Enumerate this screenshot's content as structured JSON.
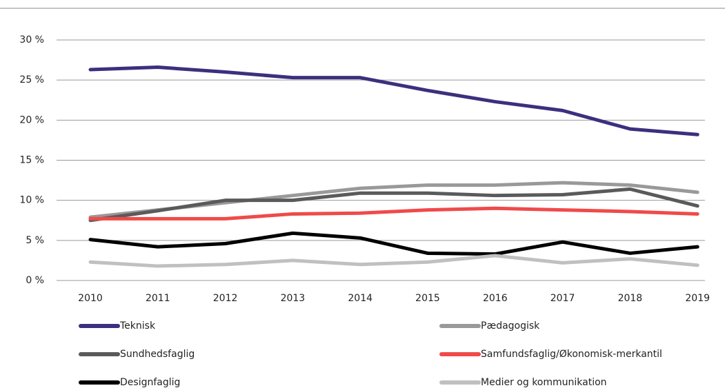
{
  "chart_data": {
    "type": "line",
    "categories": [
      "2010",
      "2011",
      "2012",
      "2013",
      "2014",
      "2015",
      "2016",
      "2017",
      "2018",
      "2019"
    ],
    "series": [
      {
        "name": "Teknisk",
        "color": "#3d2f7e",
        "values": [
          26.3,
          26.6,
          26.0,
          25.3,
          25.3,
          23.7,
          22.3,
          21.2,
          18.9,
          18.2
        ]
      },
      {
        "name": "Pædagogisk",
        "color": "#999999",
        "values": [
          7.9,
          8.8,
          9.7,
          10.6,
          11.5,
          11.9,
          11.9,
          12.2,
          11.9,
          11.0
        ]
      },
      {
        "name": "Sundhedsfaglig",
        "color": "#5a5a5a",
        "values": [
          7.5,
          8.7,
          10.0,
          10.0,
          10.9,
          10.9,
          10.6,
          10.7,
          11.4,
          9.3
        ]
      },
      {
        "name": "Samfundsfaglig/Økonomisk-merkantil",
        "color": "#f04a4a",
        "values": [
          7.7,
          7.7,
          7.7,
          8.3,
          8.4,
          8.8,
          9.0,
          8.8,
          8.6,
          8.3
        ]
      },
      {
        "name": "Designfaglig",
        "color": "#000000",
        "values": [
          5.1,
          4.2,
          4.6,
          5.9,
          5.3,
          3.4,
          3.3,
          4.8,
          3.4,
          4.2
        ]
      },
      {
        "name": "Medier og kommunikation",
        "color": "#c0c0c0",
        "values": [
          2.3,
          1.8,
          2.0,
          2.5,
          2.0,
          2.3,
          3.1,
          2.2,
          2.7,
          1.9
        ]
      }
    ],
    "ylim": [
      0,
      30
    ],
    "yticks": [
      {
        "value": 0,
        "label": "0 %"
      },
      {
        "value": 5,
        "label": "5 %"
      },
      {
        "value": 10,
        "label": "10 %"
      },
      {
        "value": 15,
        "label": "15 %"
      },
      {
        "value": 20,
        "label": "20 %"
      },
      {
        "value": 25,
        "label": "25 %"
      },
      {
        "value": 30,
        "label": "30 %"
      }
    ],
    "grid": true
  }
}
